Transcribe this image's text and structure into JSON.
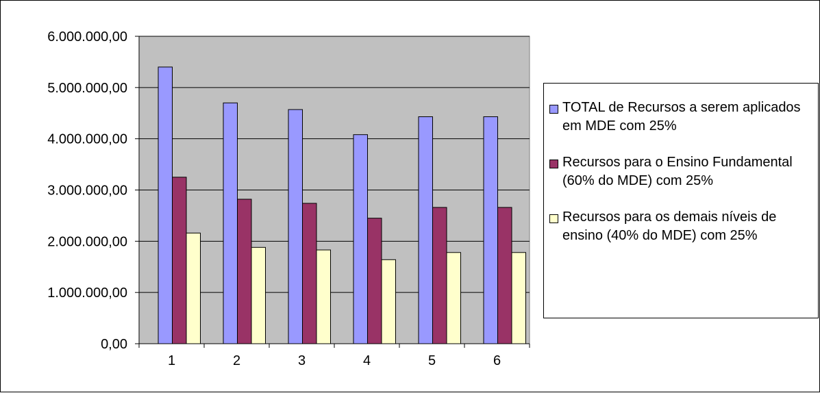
{
  "chart_data": {
    "type": "bar",
    "categories": [
      "1",
      "2",
      "3",
      "4",
      "5",
      "6"
    ],
    "series": [
      {
        "name": "TOTAL de Recursos a serem aplicados em MDE com 25%",
        "values": [
          5400000,
          4700000,
          4570000,
          4080000,
          4430000,
          4430000
        ],
        "color": "#9999ff"
      },
      {
        "name": "Recursos para o Ensino Fundamental (60% do MDE) com 25%",
        "values": [
          3250000,
          2820000,
          2740000,
          2450000,
          2660000,
          2660000
        ],
        "color": "#993366"
      },
      {
        "name": "Recursos para os demais níveis de ensino (40% do MDE) com 25%",
        "values": [
          2160000,
          1880000,
          1830000,
          1640000,
          1780000,
          1780000
        ],
        "color": "#ffffcc"
      }
    ],
    "yticks": [
      "0,00",
      "1.000.000,00",
      "2.000.000,00",
      "3.000.000,00",
      "4.000.000,00",
      "5.000.000,00",
      "6.000.000,00"
    ],
    "ylim": [
      0,
      6000000
    ],
    "ystep": 1000000,
    "grid": true,
    "plot_background": "#c0c0c0",
    "legend_position": "right"
  }
}
